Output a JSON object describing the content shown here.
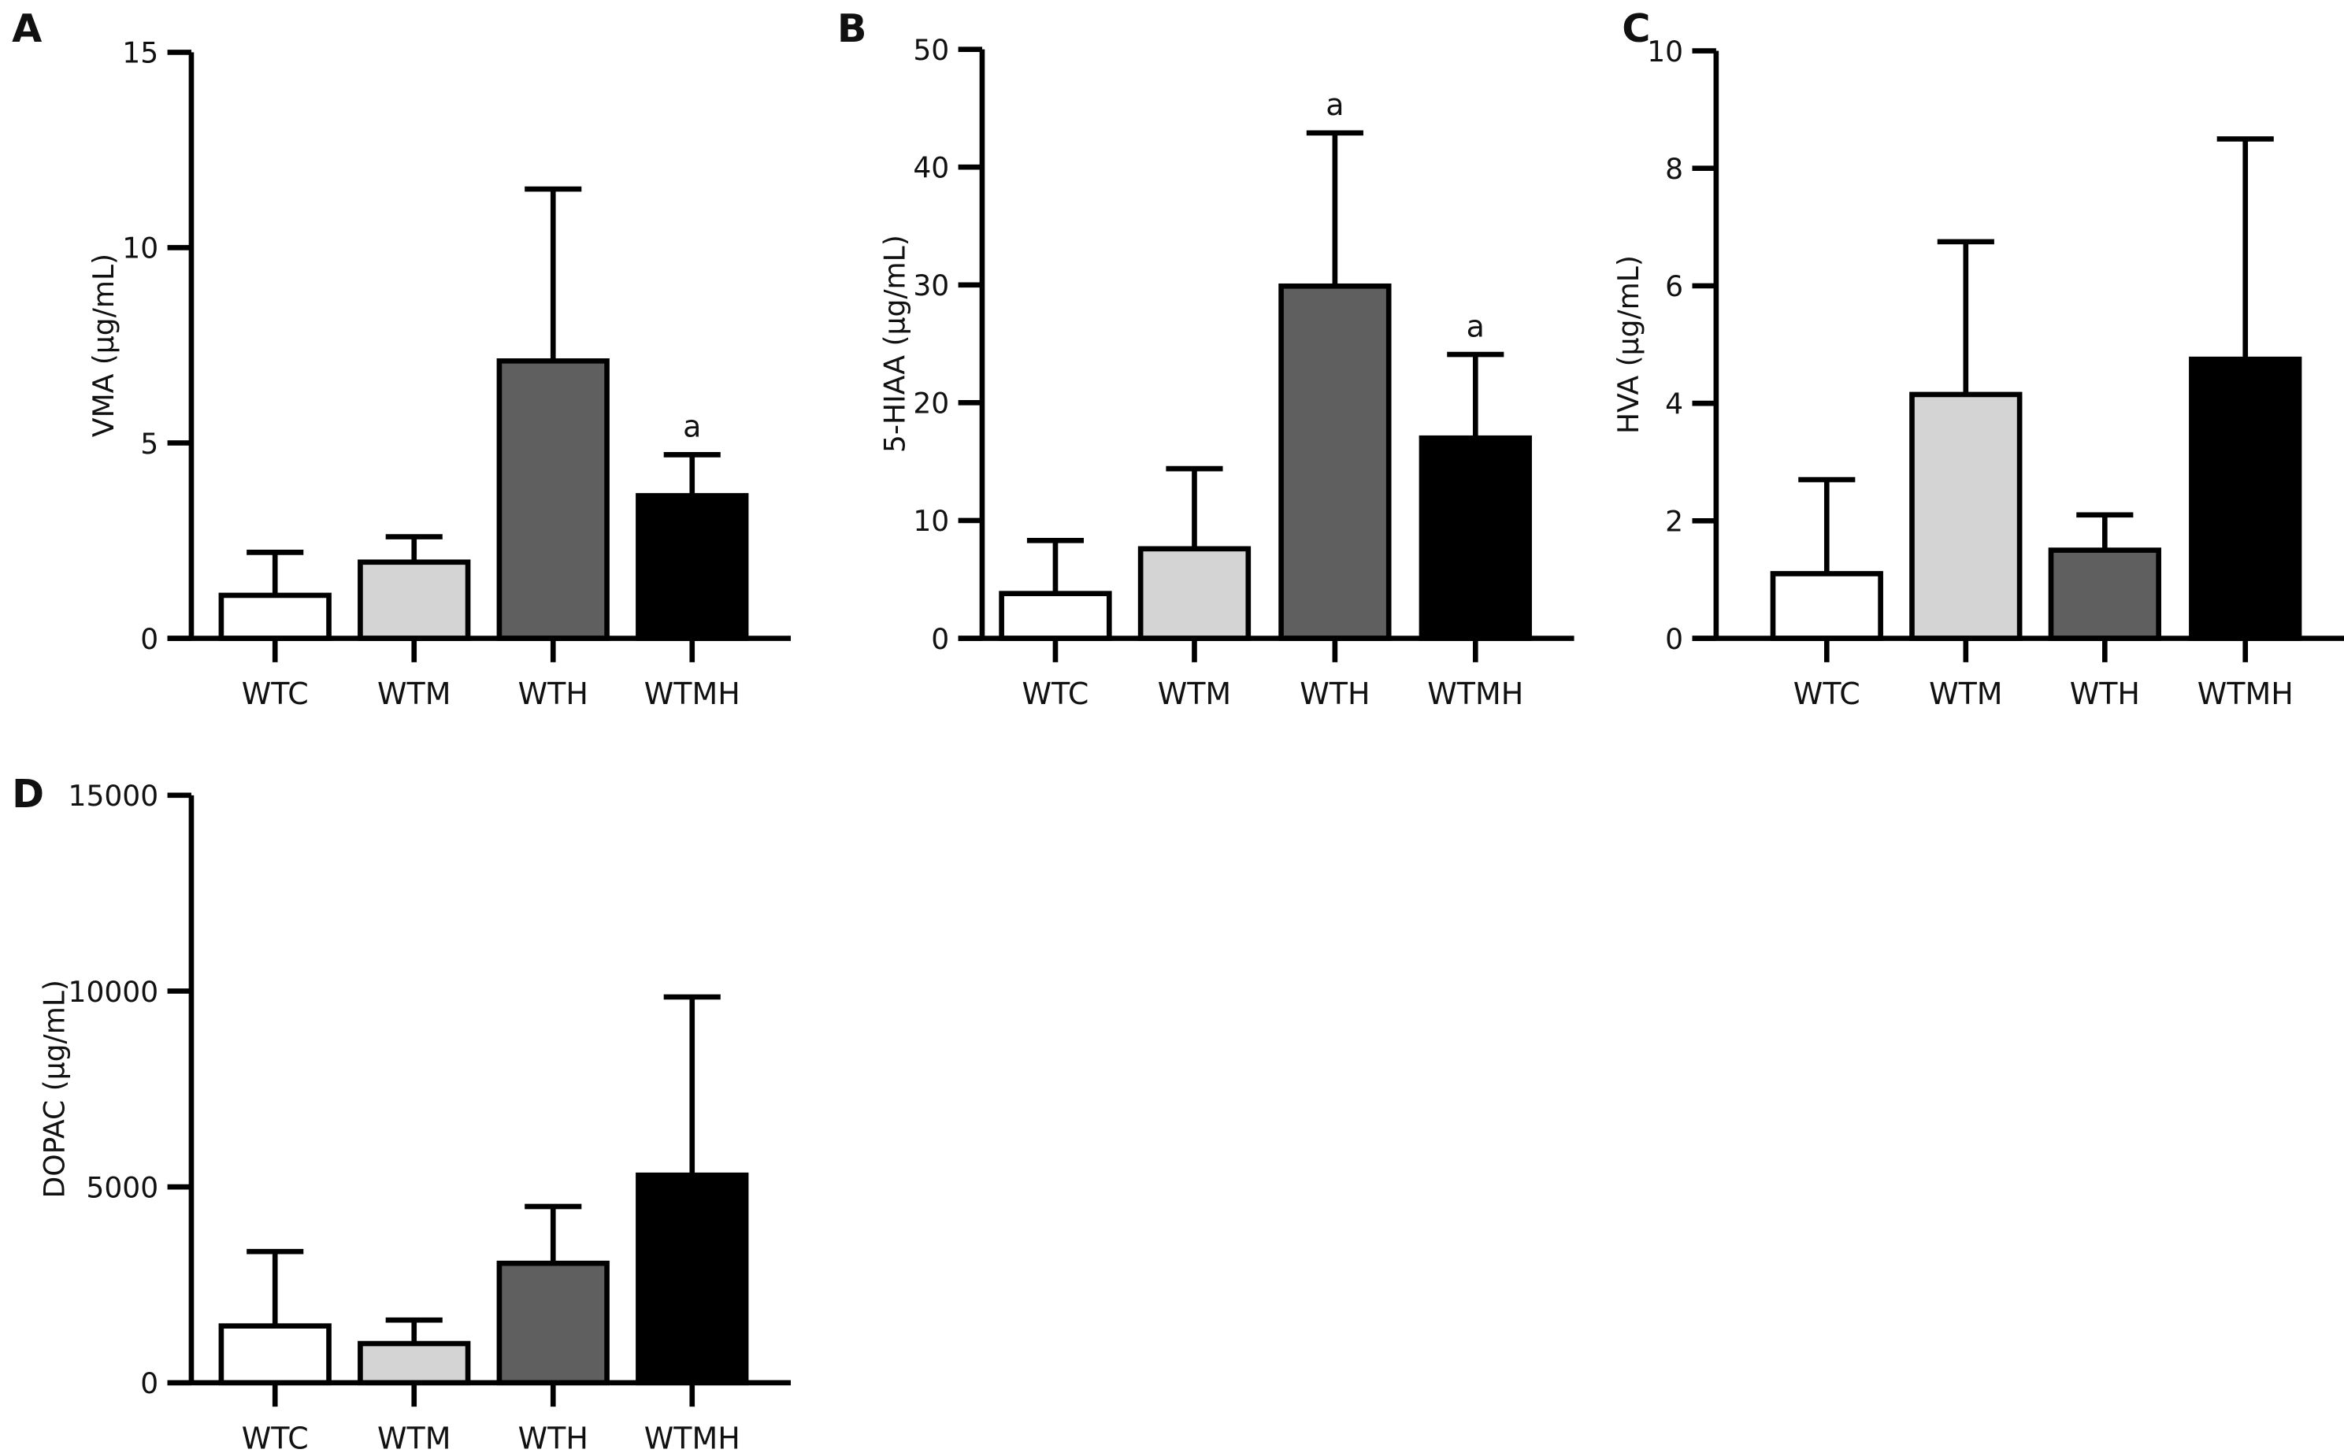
{
  "chart_data": [
    {
      "panel": "A",
      "type": "bar",
      "ylabel": "VMA (µg/mL)",
      "categories": [
        "WTC",
        "WTM",
        "WTH",
        "WTMH"
      ],
      "values": [
        1.1,
        1.95,
        7.1,
        3.65
      ],
      "error_upper": [
        2.2,
        2.6,
        11.5,
        4.7
      ],
      "ylim": [
        0,
        15
      ],
      "yticks": [
        0,
        5,
        10,
        15
      ],
      "annotations": [
        "",
        "",
        "",
        "a"
      ]
    },
    {
      "panel": "B",
      "type": "bar",
      "ylabel": "5-HIAA (µg/mL)",
      "categories": [
        "WTC",
        "WTM",
        "WTH",
        "WTMH"
      ],
      "values": [
        3.8,
        7.6,
        29.9,
        17
      ],
      "error_upper": [
        8.3,
        14.4,
        42.9,
        24.1
      ],
      "ylim": [
        0,
        50
      ],
      "yticks": [
        0,
        10,
        20,
        30,
        40,
        50
      ],
      "annotations": [
        "",
        "",
        "a",
        "a"
      ]
    },
    {
      "panel": "C",
      "type": "bar",
      "ylabel": "HVA (µg/mL)",
      "categories": [
        "WTC",
        "WTM",
        "WTH",
        "WTMH"
      ],
      "values": [
        1.1,
        4.15,
        1.5,
        4.75
      ],
      "error_upper": [
        2.7,
        6.75,
        2.1,
        8.5
      ],
      "ylim": [
        0,
        10
      ],
      "yticks": [
        0,
        2,
        4,
        6,
        8,
        10
      ],
      "annotations": [
        "",
        "",
        "",
        ""
      ]
    },
    {
      "panel": "D",
      "type": "bar",
      "ylabel": "DOPAC (µg/mL)",
      "categories": [
        "WTC",
        "WTM",
        "WTH",
        "WTMH"
      ],
      "values": [
        1450,
        1000,
        3050,
        5300
      ],
      "error_upper": [
        3350,
        1600,
        4500,
        9850
      ],
      "ylim": [
        0,
        15000
      ],
      "yticks": [
        0,
        5000,
        10000,
        15000
      ],
      "annotations": [
        "",
        "",
        "",
        ""
      ]
    }
  ],
  "colors": {
    "WTC": "#ffffff",
    "WTM": "#d4d4d4",
    "WTH": "#5f5f5f",
    "WTMH": "#000000",
    "stroke": "#000000"
  },
  "grid": false,
  "legend": "none"
}
